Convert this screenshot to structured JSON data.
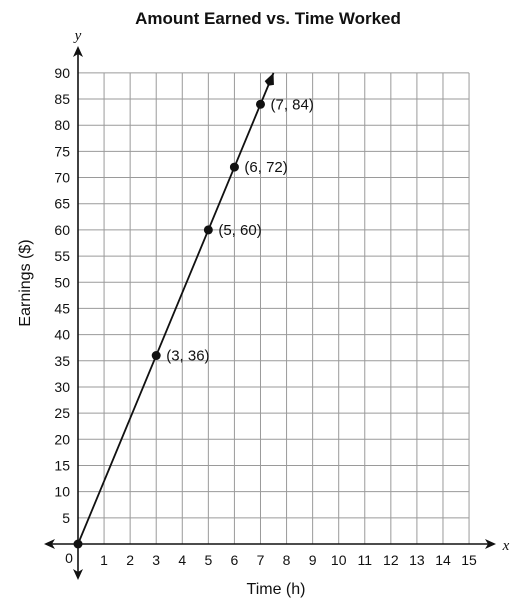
{
  "chart_data": {
    "type": "line",
    "title": "Amount Earned vs. Time Worked",
    "xlabel": "Time (h)",
    "ylabel": "Earnings ($)",
    "x_axis_var": "x",
    "y_axis_var": "y",
    "origin_label": "0",
    "xlim": [
      0,
      15
    ],
    "ylim": [
      0,
      90
    ],
    "x_ticks": [
      1,
      2,
      3,
      4,
      5,
      6,
      7,
      8,
      9,
      10,
      11,
      12,
      13,
      14,
      15
    ],
    "y_ticks": [
      5,
      10,
      15,
      20,
      25,
      30,
      35,
      40,
      45,
      50,
      55,
      60,
      65,
      70,
      75,
      80,
      85,
      90
    ],
    "grid": true,
    "line": {
      "x_start": 0,
      "y_start": 0,
      "x_end": 7.5,
      "y_end": 90,
      "arrow_end": true
    },
    "points": [
      {
        "x": 0,
        "y": 0,
        "label": ""
      },
      {
        "x": 3,
        "y": 36,
        "label": "(3, 36)"
      },
      {
        "x": 5,
        "y": 60,
        "label": "(5, 60)"
      },
      {
        "x": 6,
        "y": 72,
        "label": "(6, 72)"
      },
      {
        "x": 7,
        "y": 84,
        "label": "(7, 84)"
      }
    ]
  }
}
